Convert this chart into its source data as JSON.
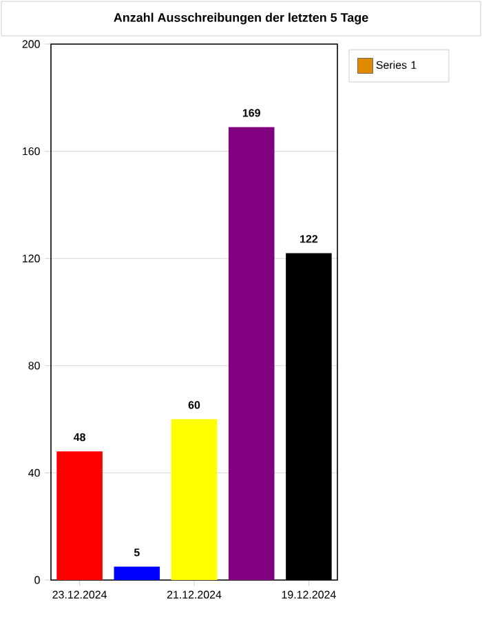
{
  "chart_data": {
    "type": "bar",
    "title": "Anzahl Ausschreibungen der letzten 5 Tage",
    "categories": [
      "23.12.2024",
      null,
      "21.12.2024",
      null,
      "19.12.2024"
    ],
    "series": [
      {
        "name": "Series 1",
        "color": "#e08a00",
        "colors": [
          "#ff0000",
          "#0000ff",
          "#ffff00",
          "#800080",
          "#000000"
        ],
        "values": [
          48,
          5,
          60,
          169,
          122
        ]
      }
    ],
    "ylim": [
      0,
      200
    ],
    "yticks": [
      0,
      40,
      80,
      120,
      160,
      200
    ],
    "grid": "y",
    "legend": "top right",
    "data_labels": true
  }
}
